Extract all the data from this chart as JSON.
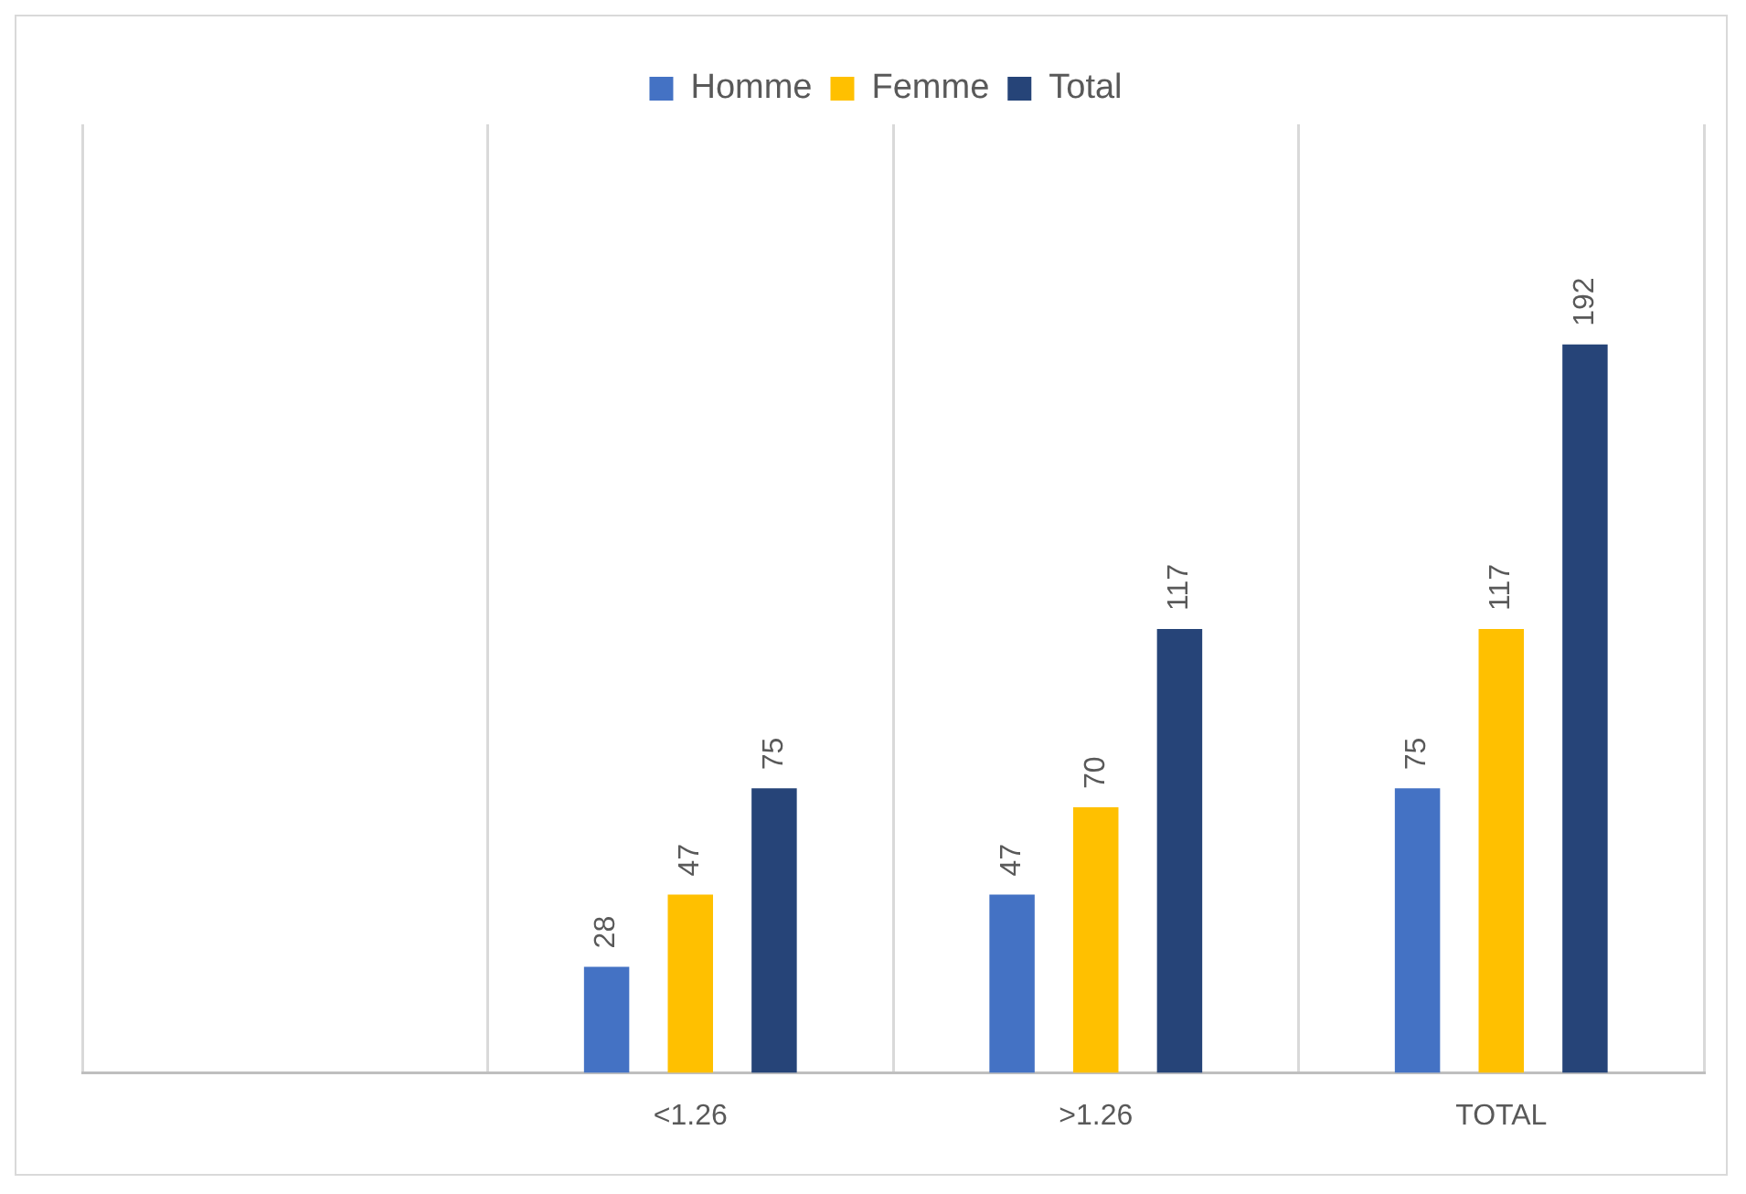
{
  "chart_data": {
    "type": "bar",
    "categories": [
      null,
      "<1.26",
      ">1.26",
      "TOTAL"
    ],
    "series": [
      {
        "name": "Homme",
        "color": "#4472c4",
        "values": [
          null,
          28,
          47,
          75
        ]
      },
      {
        "name": "Femme",
        "color": "#ffc000",
        "values": [
          null,
          47,
          70,
          117
        ]
      },
      {
        "name": "Total",
        "color": "#264478",
        "values": [
          null,
          75,
          117,
          192
        ]
      }
    ],
    "ylim": [
      0,
      250
    ],
    "tick_labels": "x",
    "grid": "x",
    "legend": "top",
    "data_labels": true
  }
}
